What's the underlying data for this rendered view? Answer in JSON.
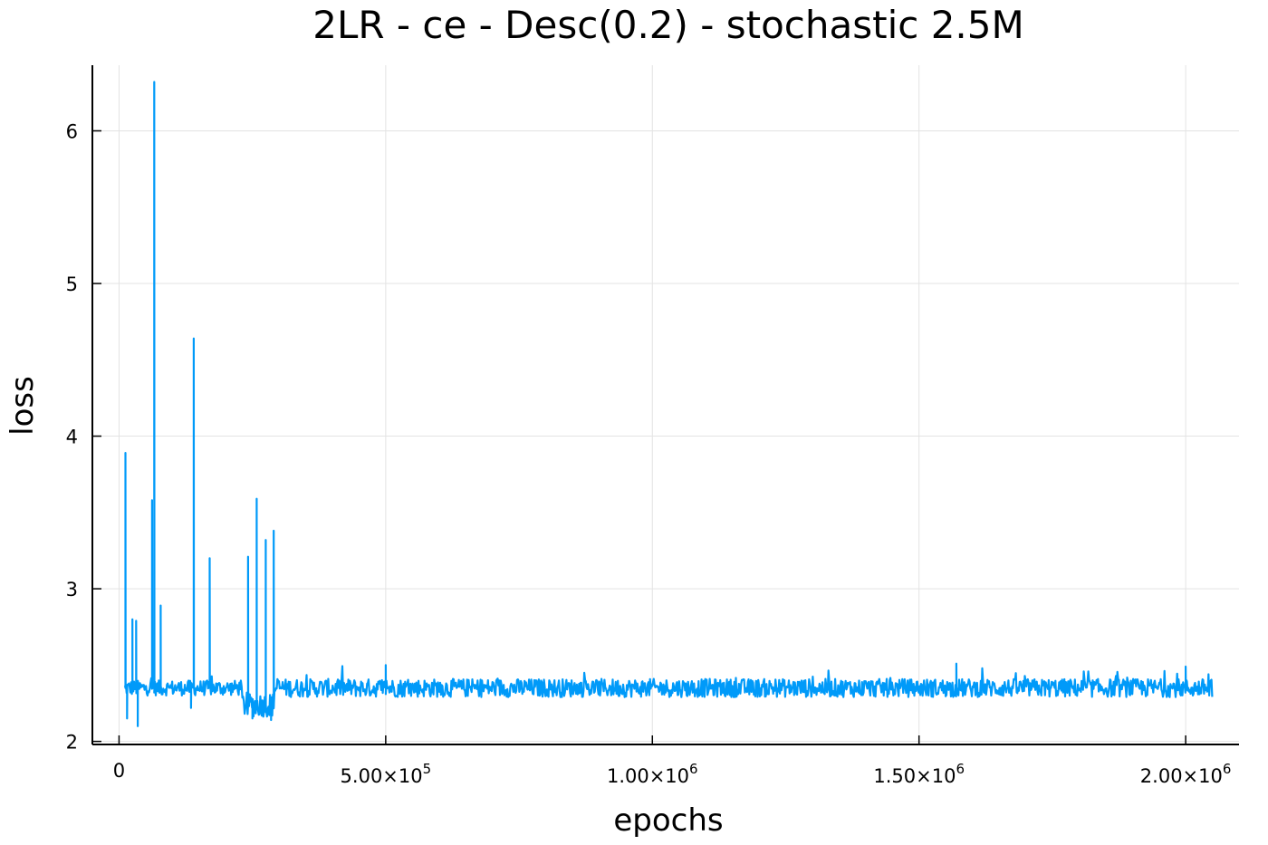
{
  "chart_data": {
    "type": "line",
    "title": "2LR - ce - Desc(0.2) - stochastic 2.5M",
    "xlabel": "epochs",
    "ylabel": "loss",
    "xlim": [
      -50000,
      2100000
    ],
    "ylim": [
      1.98,
      6.43
    ],
    "grid": true,
    "legend": "none",
    "x_ticks": [
      {
        "value": 0,
        "mantissa": "0",
        "exp": ""
      },
      {
        "value": 500000,
        "mantissa": "5.00×10",
        "exp": "5"
      },
      {
        "value": 1000000,
        "mantissa": "1.00×10",
        "exp": "6"
      },
      {
        "value": 1500000,
        "mantissa": "1.50×10",
        "exp": "6"
      },
      {
        "value": 2000000,
        "mantissa": "2.00×10",
        "exp": "6"
      }
    ],
    "y_ticks": [
      {
        "value": 2,
        "label": "2"
      },
      {
        "value": 3,
        "label": "3"
      },
      {
        "value": 4,
        "label": "4"
      },
      {
        "value": 5,
        "label": "5"
      },
      {
        "value": 6,
        "label": "6"
      }
    ],
    "series": [
      {
        "color": "#009af9",
        "x_start": 10000,
        "x_end": 2050000,
        "phases": [
          {
            "x_from": 10000,
            "x_to": 230000,
            "base": 2.35,
            "noise": 0.05
          },
          {
            "x_from": 230000,
            "x_to": 290000,
            "base": 2.24,
            "noise": 0.08
          },
          {
            "x_from": 290000,
            "x_to": 2050000,
            "base": 2.35,
            "noise": 0.06
          }
        ],
        "spikes": [
          {
            "x": 12000,
            "y": 3.89
          },
          {
            "x": 25000,
            "y": 2.8
          },
          {
            "x": 32000,
            "y": 2.79
          },
          {
            "x": 62000,
            "y": 3.58
          },
          {
            "x": 66000,
            "y": 6.32
          },
          {
            "x": 78000,
            "y": 2.89
          },
          {
            "x": 140000,
            "y": 4.64
          },
          {
            "x": 170000,
            "y": 3.2
          },
          {
            "x": 242000,
            "y": 3.21
          },
          {
            "x": 258000,
            "y": 3.59
          },
          {
            "x": 275000,
            "y": 3.32
          },
          {
            "x": 290000,
            "y": 3.38
          },
          {
            "x": 500000,
            "y": 2.5
          },
          {
            "x": 1570000,
            "y": 2.51
          },
          {
            "x": 2000000,
            "y": 2.49
          }
        ],
        "dips": [
          {
            "x": 15000,
            "y": 2.15
          },
          {
            "x": 35000,
            "y": 2.1
          },
          {
            "x": 135000,
            "y": 2.22
          },
          {
            "x": 250000,
            "y": 2.15
          },
          {
            "x": 285000,
            "y": 2.14
          }
        ]
      }
    ]
  }
}
